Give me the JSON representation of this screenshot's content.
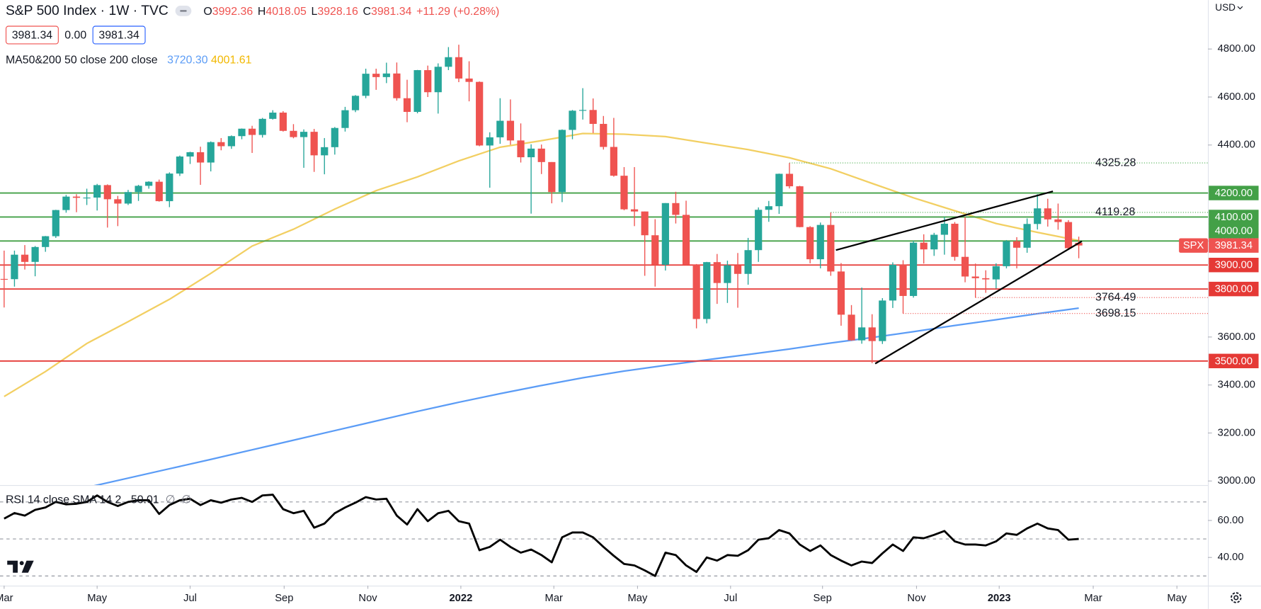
{
  "chart_data": {
    "type": "candlestick",
    "title": "S&P 500 Index · 1W · TVC",
    "ohlc_keys": [
      "O",
      "H",
      "L",
      "C"
    ],
    "change": "+11.29 (+0.28%)",
    "quote_boxes": [
      "3981.34",
      "0.00",
      "3981.34"
    ],
    "currency": "USD",
    "up_color": "#26a69a",
    "down_color": "#ef5350",
    "xlim": [
      -0.4,
      116.5
    ],
    "xticks": [
      {
        "value": 0,
        "label": "Mar"
      },
      {
        "value": 9,
        "label": "May"
      },
      {
        "value": 18,
        "label": "Jul"
      },
      {
        "value": 27.1,
        "label": "Sep"
      },
      {
        "value": 35.2,
        "label": "Nov"
      },
      {
        "value": 44.2,
        "label": "2022"
      },
      {
        "value": 53.2,
        "label": "Mar"
      },
      {
        "value": 61.3,
        "label": "May"
      },
      {
        "value": 70.3,
        "label": "Jul"
      },
      {
        "value": 79.2,
        "label": "Sep"
      },
      {
        "value": 88.3,
        "label": "Nov"
      },
      {
        "value": 96.3,
        "label": "2023"
      },
      {
        "value": 105.4,
        "label": "Mar"
      },
      {
        "value": 113.5,
        "label": "May"
      }
    ],
    "ylim": [
      2983,
      5004
    ],
    "yticks": [
      {
        "value": 3000,
        "label": "3000.00"
      },
      {
        "value": 3200,
        "label": "3200.00"
      },
      {
        "value": 3400,
        "label": "3400.00"
      },
      {
        "value": 3600,
        "label": "3600.00"
      },
      {
        "value": 3800,
        "label": "3800.00"
      },
      {
        "value": 4000,
        "label": "4000.00"
      },
      {
        "value": 4200,
        "label": "4200.00"
      },
      {
        "value": 4400,
        "label": "4400.00"
      },
      {
        "value": 4600,
        "label": "4600.00"
      },
      {
        "value": 4800,
        "label": "4800.00"
      }
    ],
    "candles": {
      "x": [
        0,
        1,
        2,
        3,
        4,
        5,
        6,
        7,
        8,
        9,
        10,
        11,
        12,
        13,
        14,
        15,
        16,
        17,
        18,
        19,
        20,
        21,
        22,
        23,
        24,
        25,
        26,
        27,
        28,
        29,
        30,
        31,
        32,
        33,
        34,
        35,
        36,
        37,
        38,
        39,
        40,
        41,
        42,
        43,
        44,
        45,
        46,
        47,
        48,
        49,
        50,
        51,
        52,
        53,
        54,
        55,
        56,
        57,
        58,
        59,
        60,
        61,
        62,
        63,
        64,
        65,
        66,
        67,
        68,
        69,
        70,
        71,
        72,
        73,
        74,
        75,
        76,
        77,
        78,
        79,
        80,
        81,
        82,
        83,
        84,
        85,
        86,
        87,
        88,
        89,
        90,
        91,
        92,
        93,
        94,
        95,
        96,
        97,
        98,
        99,
        100,
        101,
        102,
        103,
        104
      ],
      "open": [
        3842,
        3841,
        3943,
        3913,
        3975,
        4020,
        4129,
        4185,
        4180,
        4181,
        4233,
        4174,
        4156,
        4204,
        4230,
        4247,
        4166,
        4281,
        4352,
        4370,
        4327,
        4412,
        4395,
        4437,
        4468,
        4442,
        4509,
        4535,
        4459,
        4433,
        4455,
        4357,
        4391,
        4471,
        4545,
        4605,
        4697,
        4683,
        4698,
        4595,
        4538,
        4712,
        4620,
        4726,
        4766,
        4677,
        4663,
        4398,
        4432,
        4501,
        4419,
        4349,
        4385,
        4329,
        4204,
        4463,
        4543,
        4546,
        4488,
        4392,
        4272,
        4132,
        4123,
        4024,
        3901,
        4158,
        4109,
        3901,
        3675,
        3912,
        3825,
        3899,
        3863,
        3962,
        4130,
        4145,
        4280,
        4228,
        4058,
        3924,
        4067,
        3873,
        3693,
        3586,
        3640,
        3583,
        3752,
        3901,
        3771,
        3993,
        3965,
        4026,
        4072,
        3934,
        3852,
        3845,
        3840,
        3895,
        3999,
        3972,
        4071,
        4136,
        4090,
        4079,
        3992.36
      ],
      "high": [
        3960,
        3960,
        3983,
        3979,
        4021,
        4130,
        4192,
        4195,
        4218,
        4238,
        4236,
        4188,
        4213,
        4234,
        4249,
        4256,
        4286,
        4356,
        4372,
        4393,
        4415,
        4429,
        4440,
        4469,
        4480,
        4513,
        4545,
        4541,
        4487,
        4465,
        4467,
        4429,
        4475,
        4559,
        4608,
        4718,
        4718,
        4743,
        4744,
        4672,
        4713,
        4731,
        4740,
        4808,
        4818,
        4749,
        4665,
        4453,
        4595,
        4590,
        4490,
        4403,
        4402,
        4329,
        4465,
        4546,
        4637,
        4594,
        4521,
        4513,
        4308,
        4308,
        4123,
        4091,
        4158,
        4205,
        4168,
        3904,
        3913,
        3946,
        3918,
        3950,
        4013,
        4140,
        4167,
        4281,
        4325,
        4230,
        4062,
        4077,
        4119,
        3908,
        3733,
        3806,
        3695,
        3762,
        3911,
        3920,
        4001,
        4028,
        4034,
        4100,
        4079,
        4100,
        3906,
        3878,
        3907,
        4004,
        4016,
        4094,
        4195,
        4176,
        4156,
        4087,
        4018.05
      ],
      "low": [
        3723,
        3810,
        3881,
        3853,
        3955,
        4013,
        4118,
        4120,
        4150,
        4127,
        4056,
        4062,
        4150,
        4167,
        4218,
        4164,
        4141,
        4271,
        4321,
        4234,
        4290,
        4378,
        4384,
        4424,
        4367,
        4431,
        4506,
        4456,
        4428,
        4305,
        4288,
        4278,
        4360,
        4456,
        4537,
        4595,
        4630,
        4658,
        4585,
        4495,
        4532,
        4600,
        4531,
        4712,
        4662,
        4582,
        4395,
        4222,
        4405,
        4401,
        4327,
        4114,
        4279,
        4157,
        4162,
        4424,
        4506,
        4450,
        4381,
        4268,
        4128,
        4062,
        3855,
        3810,
        3877,
        4073,
        3900,
        3636,
        3657,
        3738,
        3742,
        3722,
        3818,
        3913,
        4080,
        4113,
        4219,
        4057,
        3907,
        3886,
        3855,
        3647,
        3584,
        3572,
        3491,
        3571,
        3721,
        3698,
        3764,
        3906,
        3938,
        3943,
        3918,
        3828,
        3764,
        3784,
        3802,
        3886,
        3886,
        3951,
        4048,
        4060,
        4047,
        3968,
        3928.16
      ],
      "close": [
        3841,
        3943,
        3913,
        3975,
        4020,
        4129,
        4185,
        4180,
        4181,
        4233,
        4174,
        4156,
        4204,
        4230,
        4247,
        4166,
        4281,
        4352,
        4370,
        4327,
        4412,
        4395,
        4437,
        4468,
        4442,
        4509,
        4535,
        4459,
        4433,
        4455,
        4357,
        4391,
        4471,
        4545,
        4605,
        4697,
        4683,
        4698,
        4595,
        4538,
        4712,
        4620,
        4726,
        4766,
        4677,
        4663,
        4398,
        4432,
        4501,
        4419,
        4349,
        4385,
        4329,
        4204,
        4463,
        4543,
        4546,
        4488,
        4392,
        4272,
        4132,
        4123,
        4024,
        3901,
        4158,
        4109,
        3901,
        3675,
        3912,
        3825,
        3899,
        3863,
        3962,
        4130,
        4145,
        4280,
        4228,
        4058,
        3924,
        4067,
        3873,
        3693,
        3586,
        3640,
        3583,
        3752,
        3901,
        3771,
        3993,
        3965,
        4026,
        4072,
        3934,
        3852,
        3845,
        3840,
        3895,
        3999,
        3972,
        4071,
        4136,
        4090,
        4079,
        3970,
        3981.34
      ]
    },
    "moving_averages": {
      "label": "MA50&200 50 close 200 close",
      "lines": [
        {
          "color": "#5b9cf6",
          "x": [
            8,
            12,
            16,
            20,
            24,
            28,
            32,
            36,
            40,
            44,
            48,
            52,
            56,
            60,
            64,
            68,
            72,
            76,
            80,
            84,
            88,
            92,
            96,
            100,
            104
          ],
          "values": [
            2973,
            3012,
            3051,
            3090,
            3130,
            3170,
            3210,
            3250,
            3290,
            3328,
            3364,
            3398,
            3430,
            3458,
            3482,
            3505,
            3527,
            3550,
            3575,
            3598,
            3622,
            3648,
            3672,
            3697,
            3720.3
          ],
          "last_label": "3720.30"
        },
        {
          "color": "#f2cf62",
          "x": [
            0,
            4,
            8,
            12,
            16,
            20,
            24,
            28,
            32,
            36,
            40,
            44,
            48,
            52,
            56,
            60,
            64,
            68,
            72,
            76,
            80,
            84,
            88,
            92,
            96,
            100,
            104
          ],
          "values": [
            3352,
            3456,
            3573,
            3664,
            3757,
            3865,
            3979,
            4049,
            4133,
            4210,
            4267,
            4334,
            4391,
            4418,
            4448,
            4445,
            4435,
            4408,
            4381,
            4347,
            4301,
            4240,
            4180,
            4126,
            4073,
            4036,
            4001.61
          ],
          "last_label": "4001.61"
        }
      ]
    },
    "levels": [
      {
        "value": 4200,
        "label": "4200.00",
        "color": "#43a047"
      },
      {
        "value": 4100,
        "label": "4100.00",
        "color": "#43a047"
      },
      {
        "value": 4000,
        "label": "4000.00",
        "color": "#43a047"
      },
      {
        "value": 3900,
        "label": "3900.00",
        "color": "#e53935"
      },
      {
        "value": 3800,
        "label": "3800.00",
        "color": "#e53935"
      },
      {
        "value": 3500,
        "label": "3500.00",
        "color": "#e53935"
      }
    ],
    "last_price": {
      "name": "SPX",
      "color": "#ef5350"
    },
    "dotted_levels": [
      {
        "value": 4325.28,
        "x_start": 76,
        "color": "#4caf50"
      },
      {
        "value": 4119.28,
        "x_start": 80,
        "color": "#4caf50"
      },
      {
        "value": 3764.49,
        "x_start": 94,
        "color": "#ef5350"
      },
      {
        "value": 3698.15,
        "x_start": 87,
        "color": "#ef5350"
      }
    ],
    "trendlines": [
      {
        "color": "#000000",
        "points": [
          [
            80.5,
            3962
          ],
          [
            101.5,
            4207
          ]
        ]
      },
      {
        "color": "#000000",
        "points": [
          [
            84.3,
            3489
          ],
          [
            104.3,
            3999
          ]
        ]
      }
    ],
    "rsi": {
      "label": "RSI 14 close SMA 14 2",
      "na_labels": [
        "∅",
        "∅"
      ],
      "color": "#000000",
      "ylim": [
        24.8,
        79.1
      ],
      "yticks": [
        {
          "value": 40,
          "label": "40.00"
        },
        {
          "value": 60,
          "label": "60.00"
        }
      ],
      "levels": [
        70,
        50,
        30
      ],
      "values": [
        61,
        64,
        62.6,
        65.7,
        67,
        70,
        68.7,
        69,
        70,
        73.5,
        70,
        67.8,
        70,
        70.9,
        70.9,
        63.5,
        68.3,
        70.9,
        71.7,
        68.3,
        70.9,
        69.6,
        71.3,
        72.2,
        70,
        73.5,
        73.9,
        66.1,
        63.9,
        65.2,
        56.1,
        58.3,
        63.9,
        67,
        69.6,
        72.6,
        71.3,
        71.7,
        62.6,
        57.8,
        66.1,
        59.6,
        63.9,
        65.2,
        59.6,
        58.3,
        43.9,
        45.7,
        49.6,
        45.7,
        42.6,
        44.3,
        41.3,
        37.4,
        50.9,
        53.5,
        53.5,
        50.9,
        45.7,
        40.9,
        36.5,
        35.7,
        33,
        30,
        42.6,
        41.3,
        35.7,
        32.2,
        40,
        38.3,
        41.3,
        40.9,
        43.9,
        49.6,
        50.4,
        54.8,
        53,
        47,
        43.5,
        46.5,
        41.3,
        38.3,
        35.7,
        37.8,
        37,
        42.2,
        47,
        43.5,
        50.9,
        50.4,
        52.2,
        54.3,
        48.7,
        47,
        47,
        46.5,
        48.7,
        53,
        52.2,
        55.7,
        58.3,
        55.7,
        54.8,
        49.6,
        50.01
      ]
    }
  }
}
